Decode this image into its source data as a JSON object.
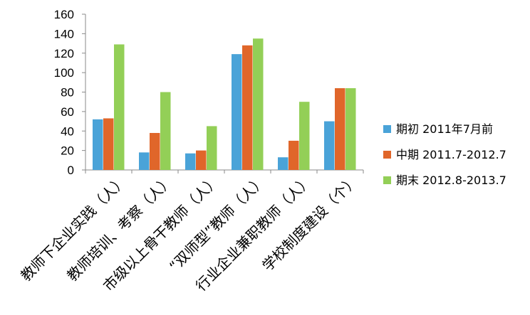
{
  "chart_data": {
    "type": "bar",
    "title": "",
    "xlabel": "",
    "ylabel": "",
    "ylim": [
      0,
      160
    ],
    "yticks": [
      0,
      20,
      40,
      60,
      80,
      100,
      120,
      140,
      160
    ],
    "grid": false,
    "legend_position": "right",
    "categories": [
      "教师下企业实践（人）",
      "教师培训、考察（人）",
      "市级以上骨干教师（人）",
      "“双师型”教师（人）",
      "行业企业兼职教师（人）",
      "学校制度建设（个）"
    ],
    "series": [
      {
        "name": "期初 2011年7月前",
        "color": "#4aa3d8",
        "values": [
          52,
          18,
          17,
          119,
          13,
          50
        ]
      },
      {
        "name": "中期 2011.7-2012.7",
        "color": "#e0662a",
        "values": [
          53,
          38,
          20,
          128,
          30,
          84
        ]
      },
      {
        "name": "期末 2012.8-2013.7",
        "color": "#93cf57",
        "values": [
          129,
          80,
          45,
          135,
          70,
          84
        ]
      }
    ]
  }
}
